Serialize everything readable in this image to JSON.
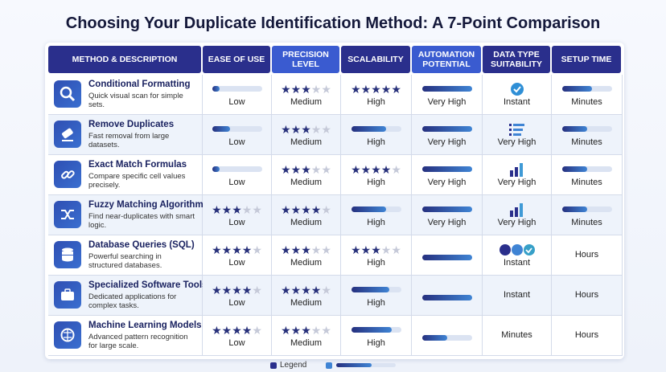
{
  "title": "Choosing Your Duplicate Identification Method: A 7-Point Comparison",
  "table": {
    "star_scale": 5,
    "columns": [
      "METHOD & DESCRIPTION",
      "EASE OF USE",
      "PRECISION LEVEL",
      "SCALABILITY",
      "AUTOMATION POTENTIAL",
      "DATA TYPE SUITABILITY",
      "SETUP TIME"
    ],
    "rows": [
      {
        "name": "Conditional Formatting",
        "description": "Quick visual scan for simple sets.",
        "cells": [
          {
            "bar": 0.15,
            "label": "Low"
          },
          {
            "stars": 3,
            "label": "Medium"
          },
          {
            "stars": 5,
            "label": "High"
          },
          {
            "bar": 1,
            "label": "Very High"
          },
          {
            "icon": "check",
            "label": "Instant"
          },
          {
            "bar": 0.6,
            "label": "Minutes"
          }
        ]
      },
      {
        "name": "Remove Duplicates",
        "description": "Fast removal from large datasets.",
        "cells": [
          {
            "bar": 0.35,
            "label": "Low"
          },
          {
            "stars": 3,
            "label": "Medium"
          },
          {
            "bar": 0.7,
            "label": "High"
          },
          {
            "bar": 1,
            "label": "Very High"
          },
          {
            "icon": "list",
            "label": "Very High"
          },
          {
            "bar": 0.5,
            "label": "Minutes"
          }
        ]
      },
      {
        "name": "Exact Match Formulas",
        "description": "Compare specific cell values precisely.",
        "cells": [
          {
            "bar": 0.15,
            "label": "Low"
          },
          {
            "stars": 3,
            "label": "Medium"
          },
          {
            "stars": 4,
            "label": "High"
          },
          {
            "bar": 1,
            "label": "Very High"
          },
          {
            "icon": "bars",
            "label": "Very High"
          },
          {
            "bar": 0.5,
            "label": "Minutes"
          }
        ]
      },
      {
        "name": "Fuzzy Matching Algorithms",
        "description": "Find near-duplicates with smart logic.",
        "cells": [
          {
            "stars": 3,
            "label": "Low"
          },
          {
            "stars": 4,
            "label": "Medium"
          },
          {
            "bar": 0.7,
            "label": "High"
          },
          {
            "bar": 1,
            "label": "Very High"
          },
          {
            "icon": "bars",
            "label": "Very High"
          },
          {
            "bar": 0.5,
            "label": "Minutes"
          }
        ]
      },
      {
        "name": "Database Queries (SQL)",
        "description": "Powerful searching in structured databases.",
        "cells": [
          {
            "stars": 4,
            "label": "Low"
          },
          {
            "stars": 3,
            "label": "Medium"
          },
          {
            "stars": 3,
            "label": "High"
          },
          {
            "bar": 1
          },
          {
            "icon": "dots",
            "label": "Instant"
          },
          {
            "label": "Hours"
          }
        ]
      },
      {
        "name": "Specialized Software Tools",
        "description": "Dedicated applications for complex tasks.",
        "cells": [
          {
            "stars": 4,
            "label": "Low"
          },
          {
            "stars": 4,
            "label": "Medium"
          },
          {
            "bar": 0.75,
            "label": "High"
          },
          {
            "bar": 1
          },
          {
            "label": "Instant"
          },
          {
            "label": "Hours"
          }
        ]
      },
      {
        "name": "Machine Learning Models",
        "description": "Advanced pattern recognition for large scale.",
        "cells": [
          {
            "stars": 4,
            "label": "Low"
          },
          {
            "stars": 3,
            "label": "Medium"
          },
          {
            "bar": 0.8,
            "label": "High"
          },
          {
            "bar": 0.5
          },
          {
            "label": "Minutes"
          },
          {
            "label": "Hours"
          }
        ]
      }
    ]
  },
  "legend": {
    "label": "Legend"
  }
}
